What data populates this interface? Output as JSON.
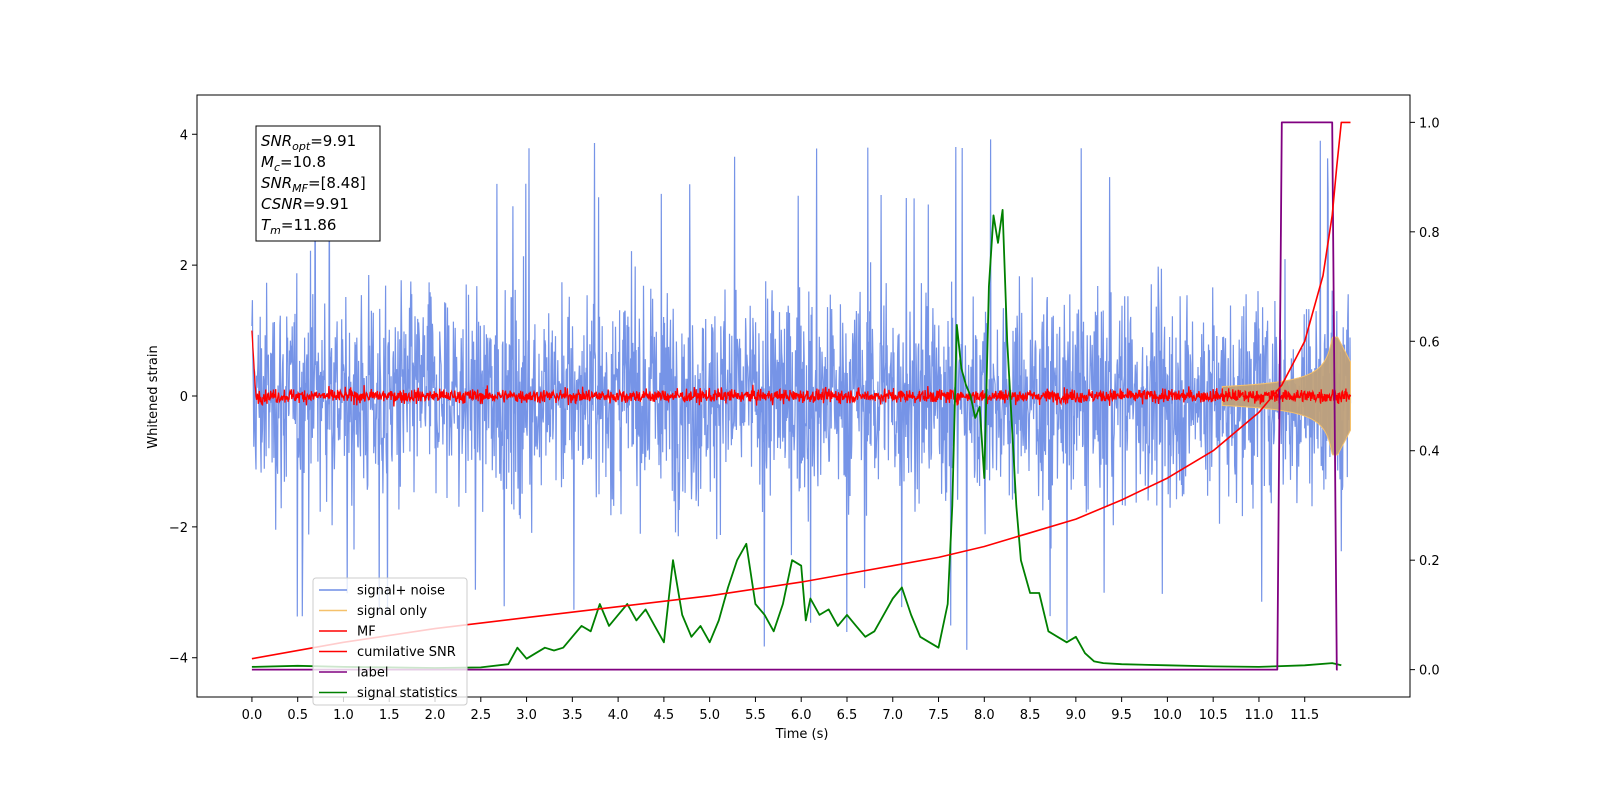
{
  "chart_data": {
    "type": "line",
    "xlabel": "Time (s)",
    "ylabel": "Whitened strain",
    "xlim": [
      -0.6,
      12.65
    ],
    "ylim": [
      -4.6,
      4.6
    ],
    "ylim_right": [
      -0.05,
      1.05
    ],
    "grid": false,
    "legend_placement": "lower-left",
    "x_ticks": [
      "0.0",
      "0.5",
      "1.0",
      "1.5",
      "2.0",
      "2.5",
      "3.0",
      "3.5",
      "4.0",
      "4.5",
      "5.0",
      "5.5",
      "6.0",
      "6.5",
      "7.0",
      "7.5",
      "8.0",
      "8.5",
      "9.0",
      "9.5",
      "10.0",
      "10.5",
      "11.0",
      "11.5"
    ],
    "y_ticks_left": [
      "−4",
      "−2",
      "0",
      "2",
      "4"
    ],
    "y_ticks_right": [
      "0.0",
      "0.2",
      "0.4",
      "0.6",
      "0.8",
      "1.0"
    ],
    "annotation": {
      "lines": [
        {
          "main": "SNR",
          "sub": "opt",
          "rest": "=9.91"
        },
        {
          "main": "M",
          "sub": "c",
          "rest": "=10.8"
        },
        {
          "main": "SNR",
          "sub": "MF",
          "rest": "=[8.48]"
        },
        {
          "main": "CSNR",
          "sub": "",
          "rest": "=9.91"
        },
        {
          "main": "T",
          "sub": "m",
          "rest": "=11.86"
        }
      ]
    },
    "series": [
      {
        "name": "signal+ noise",
        "color": "#6f8ee6",
        "axis": "left",
        "x_range": [
          0,
          12
        ],
        "amplitude_envelope": 2.2,
        "peak_max": 4.15,
        "peak_min": -4.1
      },
      {
        "name": "signal only",
        "color": "#f5c16b",
        "axis": "left",
        "x_range": [
          0,
          12
        ],
        "chirp_peak_time": 11.86,
        "peak_amplitude": 0.9
      },
      {
        "name": "MF",
        "color": "#ff0000",
        "axis": "left",
        "x_range": [
          0,
          12
        ],
        "amplitude_envelope": 0.2
      },
      {
        "name": "cumilative SNR",
        "color": "#ff0000",
        "axis": "right",
        "x": [
          0.0,
          1.0,
          2.0,
          3.0,
          4.0,
          5.0,
          6.0,
          7.0,
          7.5,
          8.0,
          8.5,
          9.0,
          9.5,
          10.0,
          10.5,
          11.0,
          11.25,
          11.5,
          11.7,
          11.8,
          11.85,
          11.9,
          12.0
        ],
        "y": [
          0.02,
          0.05,
          0.075,
          0.095,
          0.115,
          0.135,
          0.16,
          0.19,
          0.205,
          0.225,
          0.25,
          0.275,
          0.31,
          0.35,
          0.4,
          0.47,
          0.52,
          0.6,
          0.72,
          0.83,
          0.92,
          1.0,
          1.0
        ]
      },
      {
        "name": "label",
        "color": "#800080",
        "axis": "right",
        "x": [
          0.0,
          11.2,
          11.25,
          11.8,
          11.85,
          11.86
        ],
        "y": [
          0.0,
          0.0,
          1.0,
          1.0,
          0.0,
          0.0
        ]
      },
      {
        "name": "signal statistics",
        "color": "#008000",
        "axis": "right",
        "x": [
          0.0,
          0.5,
          1.0,
          1.5,
          2.0,
          2.5,
          2.8,
          2.9,
          3.0,
          3.1,
          3.2,
          3.3,
          3.4,
          3.5,
          3.6,
          3.7,
          3.8,
          3.9,
          4.0,
          4.1,
          4.2,
          4.3,
          4.4,
          4.5,
          4.6,
          4.7,
          4.8,
          4.9,
          5.0,
          5.1,
          5.2,
          5.3,
          5.4,
          5.5,
          5.6,
          5.7,
          5.8,
          5.9,
          6.0,
          6.05,
          6.1,
          6.2,
          6.3,
          6.4,
          6.5,
          6.6,
          6.7,
          6.8,
          6.9,
          7.0,
          7.1,
          7.2,
          7.3,
          7.4,
          7.5,
          7.6,
          7.65,
          7.7,
          7.75,
          7.8,
          7.85,
          7.9,
          7.95,
          8.0,
          8.05,
          8.1,
          8.15,
          8.2,
          8.25,
          8.3,
          8.35,
          8.4,
          8.5,
          8.6,
          8.7,
          8.8,
          8.9,
          9.0,
          9.1,
          9.2,
          9.3,
          9.5,
          10.0,
          10.5,
          11.0,
          11.5,
          11.8,
          11.9
        ],
        "y": [
          0.005,
          0.007,
          0.005,
          0.004,
          0.003,
          0.004,
          0.01,
          0.04,
          0.02,
          0.03,
          0.04,
          0.035,
          0.04,
          0.06,
          0.08,
          0.07,
          0.12,
          0.08,
          0.1,
          0.12,
          0.09,
          0.11,
          0.08,
          0.05,
          0.2,
          0.1,
          0.06,
          0.08,
          0.05,
          0.09,
          0.15,
          0.2,
          0.23,
          0.12,
          0.1,
          0.07,
          0.12,
          0.2,
          0.19,
          0.09,
          0.13,
          0.1,
          0.11,
          0.08,
          0.1,
          0.08,
          0.06,
          0.07,
          0.1,
          0.13,
          0.15,
          0.1,
          0.06,
          0.05,
          0.04,
          0.12,
          0.3,
          0.63,
          0.55,
          0.52,
          0.5,
          0.46,
          0.48,
          0.35,
          0.7,
          0.83,
          0.78,
          0.84,
          0.6,
          0.45,
          0.3,
          0.2,
          0.14,
          0.14,
          0.07,
          0.06,
          0.05,
          0.06,
          0.03,
          0.015,
          0.012,
          0.01,
          0.008,
          0.006,
          0.005,
          0.008,
          0.012,
          0.008
        ]
      }
    ]
  }
}
